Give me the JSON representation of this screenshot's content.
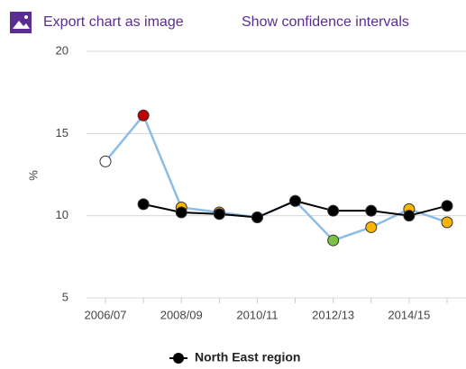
{
  "links": {
    "export": "Export chart as image",
    "confidence": "Show confidence intervals"
  },
  "chart_data": {
    "type": "line",
    "y_label": "%",
    "categories": [
      "2006/07",
      null,
      "2008/09",
      null,
      "2010/11",
      null,
      "2012/13",
      null,
      "2014/15",
      null
    ],
    "series": [
      {
        "color": "#8cbde8",
        "marker_colors": [
          "#ffffff",
          "#c00000",
          "#f7b500",
          "#f7b500",
          "#f7b500",
          "#f7b500",
          "#7cc242",
          "#f7b500",
          "#f7b500",
          "#f7b500"
        ],
        "values": [
          13.3,
          16.1,
          10.5,
          10.2,
          9.9,
          10.9,
          8.5,
          9.3,
          10.4,
          9.6
        ]
      },
      {
        "name": "North East region",
        "color": "#000000",
        "marker_colors": [
          "#000000",
          "#000000",
          "#000000",
          "#000000",
          "#000000",
          "#000000",
          "#000000",
          "#000000",
          "#000000",
          "#000000"
        ],
        "values": [
          null,
          10.7,
          10.2,
          10.1,
          9.9,
          10.9,
          10.3,
          10.3,
          10.0,
          10.6
        ]
      }
    ],
    "ylim": [
      5,
      20
    ],
    "yticks": [
      5,
      10,
      15,
      20
    ],
    "grid": true,
    "legend": "bottom"
  }
}
